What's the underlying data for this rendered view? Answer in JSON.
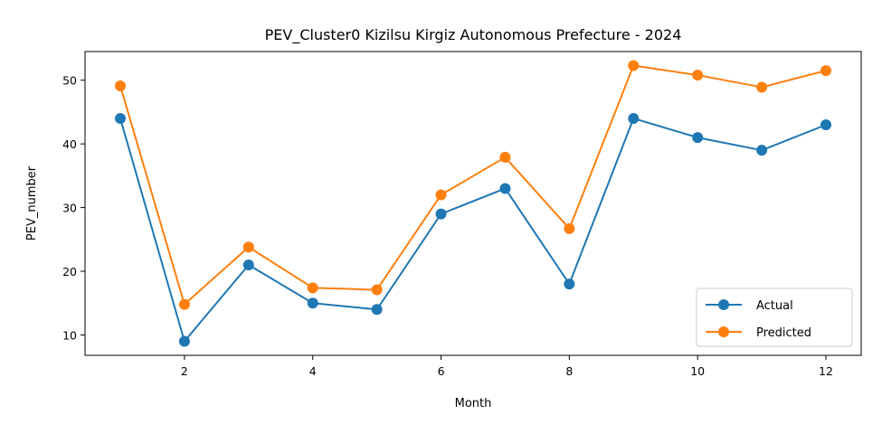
{
  "chart_data": {
    "type": "line",
    "title": "PEV_Cluster0 Kizilsu Kirgiz Autonomous Prefecture - 2024",
    "xlabel": "Month",
    "ylabel": "PEV_number",
    "x": [
      1,
      2,
      3,
      4,
      5,
      6,
      7,
      8,
      9,
      10,
      11,
      12
    ],
    "xticks": [
      2,
      4,
      6,
      8,
      10,
      12
    ],
    "yticks": [
      10,
      20,
      30,
      40,
      50
    ],
    "xlim": [
      0.45,
      12.55
    ],
    "ylim": [
      6.8,
      54.5
    ],
    "grid": false,
    "legend_position": "lower right",
    "series": [
      {
        "name": "Actual",
        "color": "#1f77b4",
        "marker": "circle",
        "values": [
          44,
          9,
          21,
          15,
          14,
          29,
          33,
          18,
          44,
          41,
          39,
          43
        ]
      },
      {
        "name": "Predicted",
        "color": "#ff7f0e",
        "marker": "circle",
        "values": [
          49.1,
          14.8,
          23.8,
          17.4,
          17.1,
          32.0,
          37.9,
          26.7,
          52.3,
          50.8,
          48.9,
          51.5
        ]
      }
    ]
  }
}
